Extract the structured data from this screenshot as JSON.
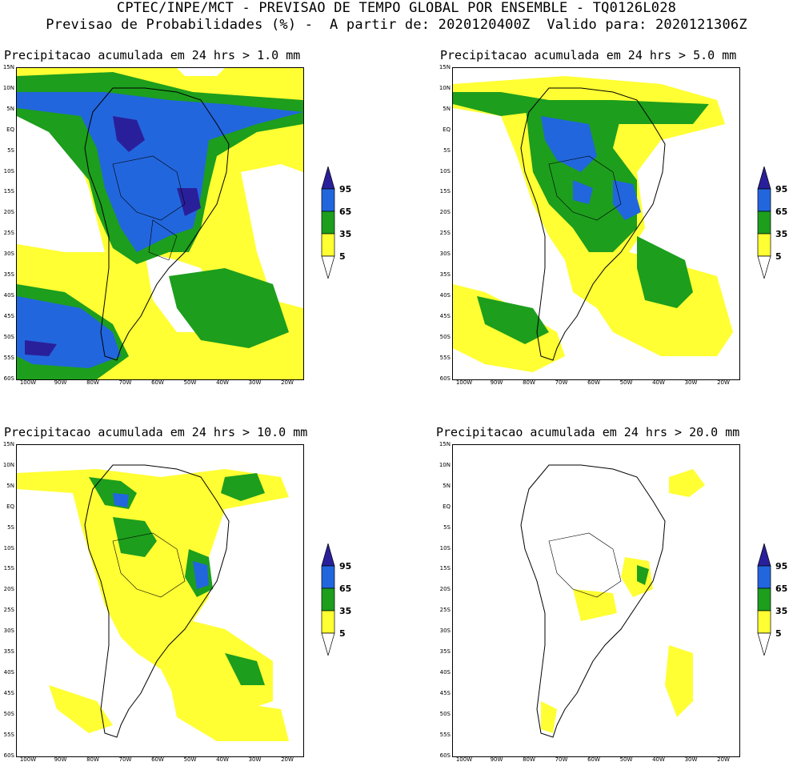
{
  "header": {
    "line1": "CPTEC/INPE/MCT - PREVISAO DE TEMPO GLOBAL POR ENSEMBLE - TQ0126L028",
    "line2": "Previsao de Probabilidades (%) -  A partir de: 2020120400Z  Valido para: 2020121306Z"
  },
  "colors": {
    "yellow": "#ffff33",
    "green": "#1d9e1d",
    "blue": "#2266dd",
    "darkblue": "#2a1f9a",
    "land_line": "#000000"
  },
  "lat_labels": [
    "15N",
    "10N",
    "5N",
    "EQ",
    "5S",
    "10S",
    "15S",
    "20S",
    "25S",
    "30S",
    "35S",
    "40S",
    "45S",
    "50S",
    "55S",
    "60S"
  ],
  "lon_labels": [
    "100W",
    "90W",
    "80W",
    "70W",
    "60W",
    "50W",
    "40W",
    "30W",
    "20W"
  ],
  "colorbar_labels": [
    "95",
    "65",
    "35",
    "5"
  ],
  "panels": [
    {
      "title": "Precipitacao acumulada em 24 hrs > 1.0 mm"
    },
    {
      "title": "Precipitacao acumulada em 24 hrs > 5.0 mm"
    },
    {
      "title": "Precipitacao acumulada em 24 hrs > 10.0 mm"
    },
    {
      "title": "Precipitacao acumulada em 24 hrs > 20.0 mm"
    }
  ]
}
